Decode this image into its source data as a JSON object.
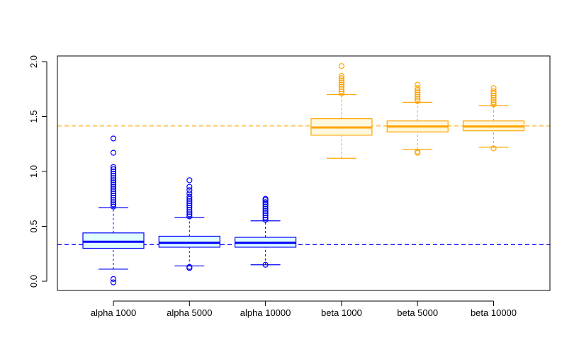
{
  "chart_data": {
    "type": "boxplot",
    "title": "",
    "xlabel": "",
    "ylabel": "",
    "ylim": [
      -0.08,
      2.05
    ],
    "y_ticks": [
      "0.0",
      "0.5",
      "1.0",
      "1.5",
      "2.0"
    ],
    "y_tick_values": [
      0.0,
      0.5,
      1.0,
      1.5,
      2.0
    ],
    "categories": [
      "alpha 1000",
      "alpha 5000",
      "alpha 10000",
      "beta 1000",
      "beta 5000",
      "beta 10000"
    ],
    "boxes": [
      {
        "name": "alpha 1000",
        "color": "#0000ff",
        "fill": "#e0ffff",
        "whisker_low": 0.11,
        "q1": 0.3,
        "median": 0.36,
        "q3": 0.44,
        "whisker_high": 0.67,
        "outliers_low": [
          0.02,
          -0.01
        ],
        "outliers_high": [
          0.68,
          0.7,
          0.72,
          0.74,
          0.76,
          0.78,
          0.8,
          0.82,
          0.84,
          0.86,
          0.88,
          0.9,
          0.92,
          0.94,
          0.96,
          0.98,
          1.0,
          1.02,
          1.04,
          1.17,
          1.3
        ]
      },
      {
        "name": "alpha 5000",
        "color": "#0000ff",
        "fill": "#e0ffff",
        "whisker_low": 0.14,
        "q1": 0.31,
        "median": 0.35,
        "q3": 0.41,
        "whisker_high": 0.58,
        "outliers_low": [
          0.12,
          0.13
        ],
        "outliers_high": [
          0.59,
          0.61,
          0.63,
          0.65,
          0.67,
          0.69,
          0.71,
          0.73,
          0.75,
          0.77,
          0.8,
          0.83,
          0.86,
          0.92
        ]
      },
      {
        "name": "alpha 10000",
        "color": "#0000ff",
        "fill": "#e0ffff",
        "whisker_low": 0.15,
        "q1": 0.31,
        "median": 0.35,
        "q3": 0.4,
        "whisker_high": 0.55,
        "outliers_low": [
          0.15
        ],
        "outliers_high": [
          0.56,
          0.58,
          0.6,
          0.62,
          0.64,
          0.66,
          0.68,
          0.7,
          0.72,
          0.74,
          0.75
        ]
      },
      {
        "name": "beta 1000",
        "color": "#ffa500",
        "fill": "#fff8dc",
        "whisker_low": 1.12,
        "q1": 1.33,
        "median": 1.4,
        "q3": 1.48,
        "whisker_high": 1.7,
        "outliers_low": [],
        "outliers_high": [
          1.71,
          1.73,
          1.75,
          1.77,
          1.79,
          1.81,
          1.83,
          1.85,
          1.87,
          1.96
        ]
      },
      {
        "name": "beta 5000",
        "color": "#ffa500",
        "fill": "#fff8dc",
        "whisker_low": 1.2,
        "q1": 1.36,
        "median": 1.41,
        "q3": 1.46,
        "whisker_high": 1.63,
        "outliers_low": [
          1.17,
          1.18
        ],
        "outliers_high": [
          1.64,
          1.66,
          1.68,
          1.7,
          1.72,
          1.74,
          1.76,
          1.79
        ]
      },
      {
        "name": "beta 10000",
        "color": "#ffa500",
        "fill": "#fff8dc",
        "whisker_low": 1.22,
        "q1": 1.37,
        "median": 1.41,
        "q3": 1.46,
        "whisker_high": 1.6,
        "outliers_low": [
          1.21
        ],
        "outliers_high": [
          1.61,
          1.63,
          1.65,
          1.67,
          1.69,
          1.71,
          1.73,
          1.76
        ]
      }
    ],
    "reference_lines": [
      {
        "name": "alpha-true",
        "y": 0.333,
        "color": "#0000ff",
        "style": "dashed"
      },
      {
        "name": "beta-true",
        "y": 1.414,
        "color": "#ffa500",
        "style": "dashed"
      }
    ],
    "grid": false,
    "legend": "none"
  }
}
